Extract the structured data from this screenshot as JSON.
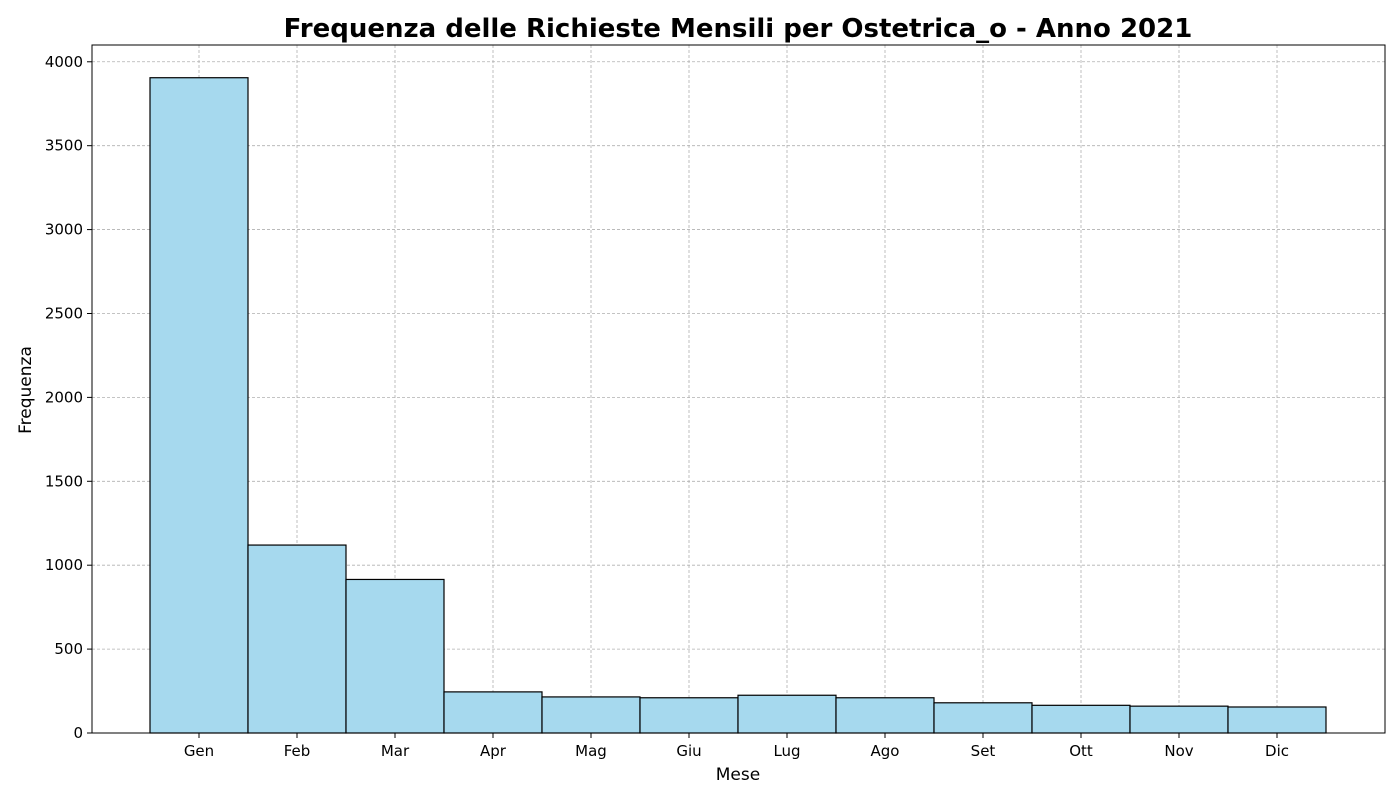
{
  "chart_data": {
    "type": "bar",
    "title": "Frequenza delle Richieste Mensili per Ostetrica_o - Anno 2021",
    "xlabel": "Mese",
    "ylabel": "Frequenza",
    "categories": [
      "Gen",
      "Feb",
      "Mar",
      "Apr",
      "Mag",
      "Giu",
      "Lug",
      "Ago",
      "Set",
      "Ott",
      "Nov",
      "Dic"
    ],
    "values": [
      3905,
      1120,
      915,
      245,
      215,
      210,
      225,
      210,
      180,
      165,
      160,
      155
    ],
    "ylim": [
      0,
      4100
    ],
    "yticks": [
      0,
      500,
      1000,
      1500,
      2000,
      2500,
      3000,
      3500,
      4000
    ],
    "grid": true,
    "bar_color": "#a6d9ee",
    "edge_color": "#000000"
  }
}
